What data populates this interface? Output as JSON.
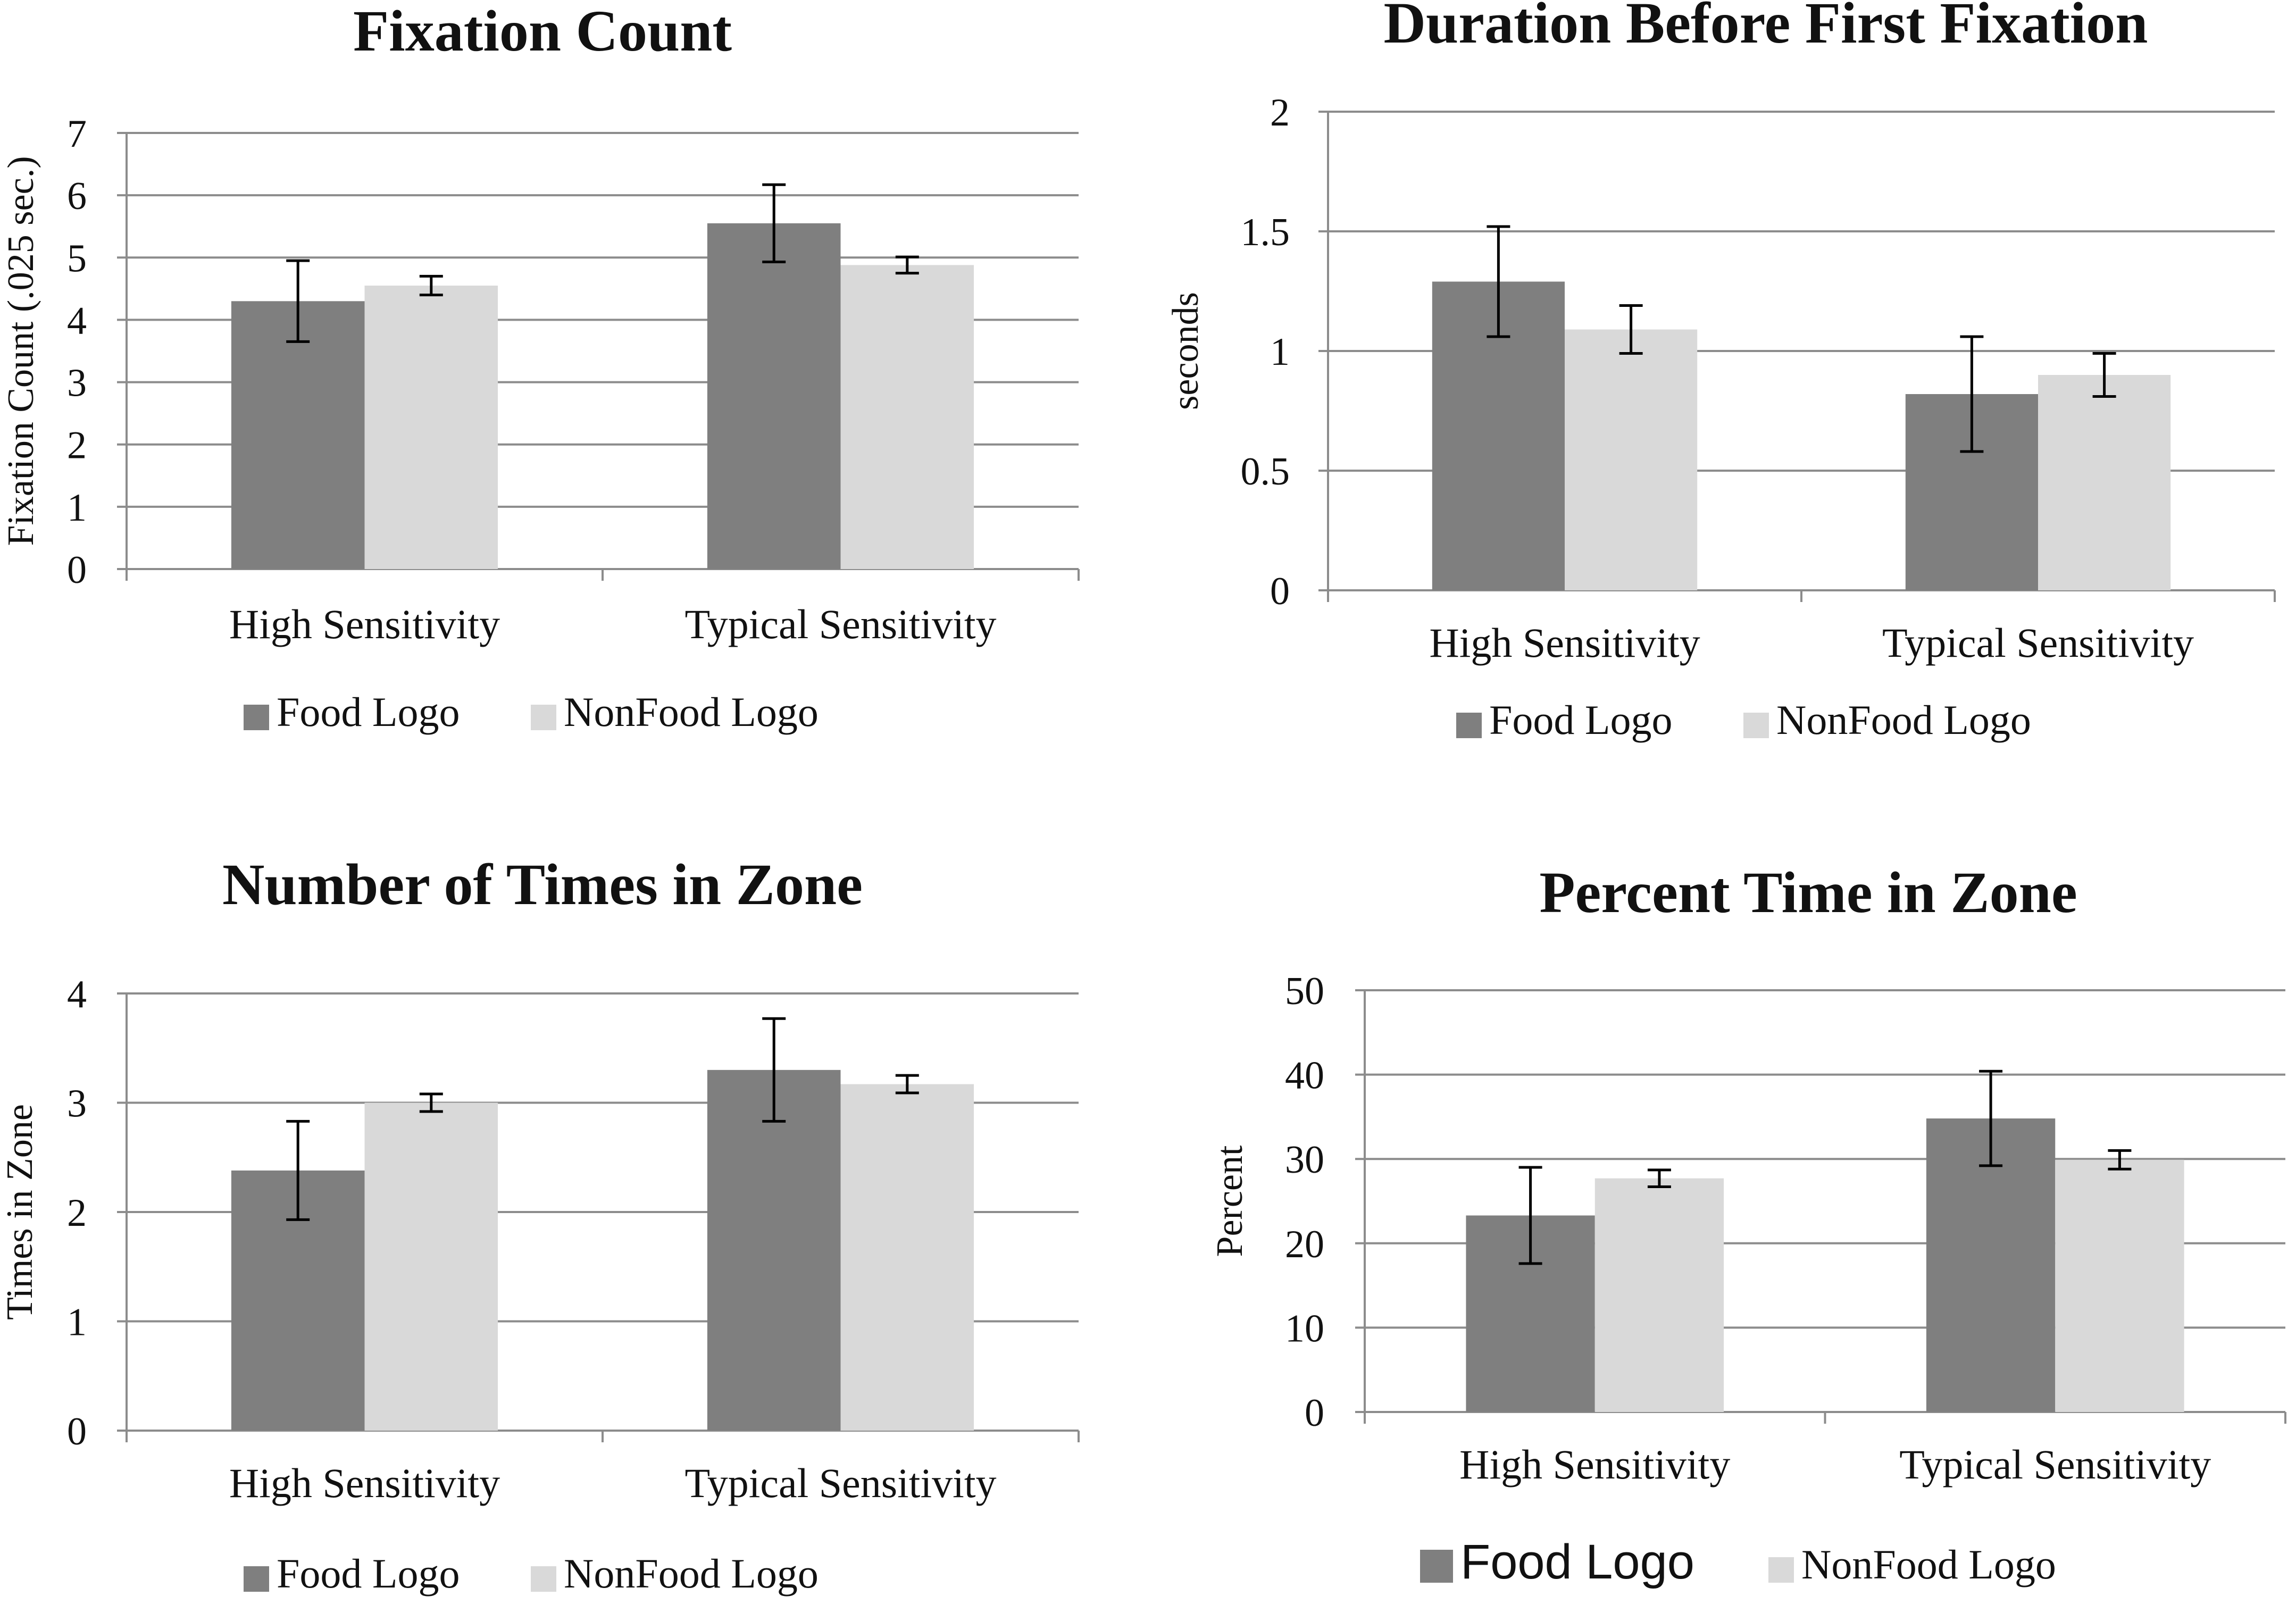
{
  "colors": {
    "food": "#7f7f7f",
    "nonfood": "#d9d9d9",
    "grid": "#8c8c8c",
    "axis": "#8c8c8c",
    "error": "#000000"
  },
  "chart_data": [
    {
      "type": "bar",
      "title": "Fixation Count",
      "ylabel": "Fixation Count (.025 sec.)",
      "xlabel": "",
      "categories": [
        "High Sensitivity",
        "Typical Sensitivity"
      ],
      "ylim": [
        0,
        7
      ],
      "yticks": [
        0,
        1,
        2,
        3,
        4,
        5,
        6,
        7
      ],
      "ytick_labels": [
        "0",
        "1",
        "2",
        "3",
        "4",
        "5",
        "6",
        "7"
      ],
      "series": [
        {
          "name": "Food Logo",
          "values": [
            4.3,
            5.55
          ],
          "errors": [
            0.65,
            0.62
          ]
        },
        {
          "name": "NonFood Logo",
          "values": [
            4.55,
            4.88
          ],
          "errors": [
            0.15,
            0.13
          ]
        }
      ],
      "legend": "bottom"
    },
    {
      "type": "bar",
      "title": "Duration Before First Fixation",
      "ylabel": "seconds",
      "xlabel": "",
      "categories": [
        "High Sensitivity",
        "Typical Sensitivity"
      ],
      "ylim": [
        0,
        2
      ],
      "yticks": [
        0,
        0.5,
        1,
        1.5,
        2
      ],
      "ytick_labels": [
        "0",
        "0.5",
        "1",
        "1.5",
        "2"
      ],
      "series": [
        {
          "name": "Food Logo",
          "values": [
            1.29,
            0.82
          ],
          "errors": [
            0.23,
            0.24
          ]
        },
        {
          "name": "NonFood Logo",
          "values": [
            1.09,
            0.9
          ],
          "errors": [
            0.1,
            0.09
          ]
        }
      ],
      "legend": "bottom"
    },
    {
      "type": "bar",
      "title": "Number of Times in Zone",
      "ylabel": "Times in Zone",
      "xlabel": "",
      "categories": [
        "High Sensitivity",
        "Typical Sensitivity"
      ],
      "ylim": [
        0,
        4
      ],
      "yticks": [
        0,
        1,
        2,
        3,
        4
      ],
      "ytick_labels": [
        "0",
        "1",
        "2",
        "3",
        "4"
      ],
      "series": [
        {
          "name": "Food Logo",
          "values": [
            2.38,
            3.3
          ],
          "errors": [
            0.45,
            0.47
          ]
        },
        {
          "name": "NonFood Logo",
          "values": [
            3.0,
            3.17
          ],
          "errors": [
            0.08,
            0.08
          ]
        }
      ],
      "legend": "bottom"
    },
    {
      "type": "bar",
      "title": "Percent Time in Zone",
      "ylabel": "Percent",
      "xlabel": "",
      "categories": [
        "High Sensitivity",
        "Typical Sensitivity"
      ],
      "ylim": [
        0,
        50
      ],
      "yticks": [
        0,
        10,
        20,
        30,
        40,
        50
      ],
      "ytick_labels": [
        "0",
        "10",
        "20",
        "30",
        "40",
        "50"
      ],
      "series": [
        {
          "name": "Food Logo",
          "values": [
            23.3,
            34.8
          ],
          "errors": [
            5.7,
            5.6
          ]
        },
        {
          "name": "NonFood Logo",
          "values": [
            27.7,
            29.9
          ],
          "errors": [
            1.0,
            1.1
          ]
        }
      ],
      "legend": "bottom"
    }
  ]
}
